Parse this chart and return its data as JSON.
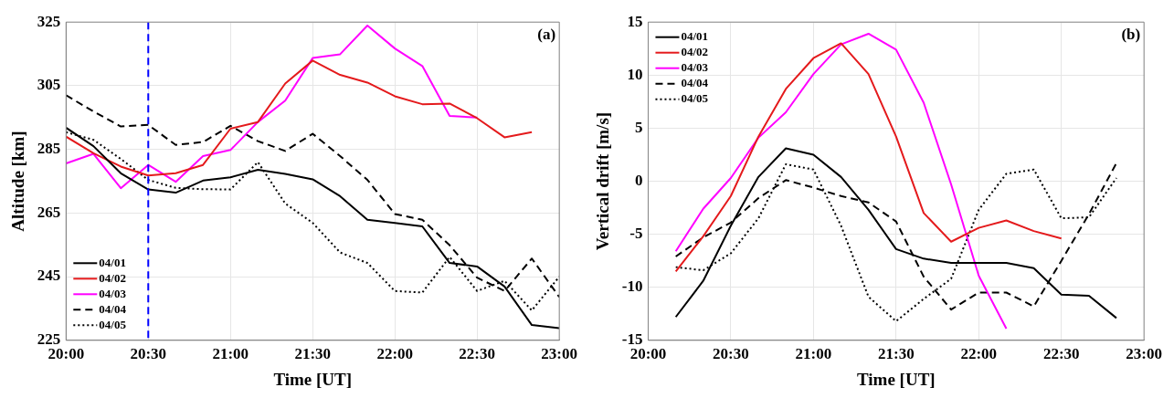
{
  "chart_data": [
    {
      "type": "line",
      "xlabel": "Time [UT]",
      "ylabel": "Altitude [km]",
      "annotations": [
        "(a)"
      ],
      "x": [
        20,
        20.167,
        20.333,
        20.5,
        20.667,
        20.833,
        21,
        21.167,
        21.333,
        21.5,
        21.667,
        21.833,
        22,
        22.167,
        22.333,
        22.5,
        22.667,
        22.833,
        23
      ],
      "series": [
        {
          "name": "04/01",
          "color": "#000000",
          "line_style": "solid",
          "values": [
            291.8,
            286,
            277.5,
            272.4,
            271.4,
            275.2,
            276.2,
            278.6,
            277.3,
            275.6,
            270.3,
            262.9,
            261.9,
            260.8,
            249.3,
            248.2,
            241.9,
            229.8,
            228.8
          ]
        },
        {
          "name": "04/02",
          "color": "#e41a1c",
          "line_style": "solid",
          "values": [
            289,
            283.8,
            279.6,
            276.8,
            277.5,
            280.1,
            291.5,
            293.6,
            305.7,
            312.9,
            308.4,
            306,
            301.7,
            299.2,
            299.4,
            294.8,
            288.8,
            290.4,
            null
          ]
        },
        {
          "name": "04/03",
          "color": "#ff00ff",
          "line_style": "solid",
          "values": [
            280.6,
            283.6,
            272.8,
            280.1,
            274.8,
            282.9,
            284.8,
            293.6,
            300.3,
            313.7,
            314.9,
            323.9,
            316.7,
            311.2,
            295.5,
            295,
            null,
            null,
            null
          ]
        },
        {
          "name": "04/04",
          "color": "#000000",
          "line_style": "dashed",
          "values": [
            302,
            296.9,
            292.2,
            292.7,
            286.4,
            287.3,
            292.4,
            287.6,
            284.5,
            289.9,
            282.9,
            275.4,
            264.7,
            262.9,
            254.9,
            244.7,
            240.5,
            250.7,
            238.6
          ]
        },
        {
          "name": "04/05",
          "color": "#000000",
          "line_style": "dotted",
          "values": [
            290.4,
            288,
            282,
            275.4,
            272.9,
            272.5,
            272.4,
            281,
            268,
            261.9,
            252.6,
            249.3,
            240.5,
            240,
            251.2,
            240.5,
            243.7,
            234.4,
            245
          ]
        }
      ],
      "xlim": [
        20,
        23
      ],
      "xticks": [
        {
          "value": 20,
          "label": "20:00"
        },
        {
          "value": 20.5,
          "label": "20:30"
        },
        {
          "value": 21,
          "label": "21:00"
        },
        {
          "value": 21.5,
          "label": "21:30"
        },
        {
          "value": 22,
          "label": "22:00"
        },
        {
          "value": 22.5,
          "label": "22:30"
        },
        {
          "value": 23,
          "label": "23:00"
        }
      ],
      "ylim": [
        225,
        325
      ],
      "yticks": [
        225,
        245,
        265,
        285,
        305,
        325
      ],
      "ref_lines": [
        {
          "axis": "x",
          "value": 20.5,
          "color": "#0000ff",
          "line_style": "dashed"
        }
      ],
      "grid": true,
      "legend": "bottom left"
    },
    {
      "type": "line",
      "xlabel": "Time [UT]",
      "ylabel": "Vertical drift [m/s]",
      "annotations": [
        "(b)"
      ],
      "x": [
        20.167,
        20.333,
        20.5,
        20.667,
        20.833,
        21,
        21.167,
        21.333,
        21.5,
        21.667,
        21.833,
        22,
        22.167,
        22.333,
        22.5,
        22.667,
        22.833
      ],
      "series": [
        {
          "name": "04/01",
          "color": "#000000",
          "line_style": "solid",
          "values": [
            -12.8,
            -9.4,
            -4.2,
            0.4,
            3.1,
            2.5,
            0.4,
            -2.7,
            -6.4,
            -7.3,
            -7.7,
            -7.7,
            -7.7,
            -8.2,
            -10.7,
            -10.8,
            -12.9
          ]
        },
        {
          "name": "04/02",
          "color": "#e41a1c",
          "line_style": "solid",
          "values": [
            -8.5,
            -5.2,
            -1.4,
            4.2,
            8.7,
            11.6,
            13,
            10.1,
            4.2,
            -3,
            -5.7,
            -4.4,
            -3.7,
            -4.7,
            -5.4,
            null,
            null
          ]
        },
        {
          "name": "04/03",
          "color": "#ff00ff",
          "line_style": "solid",
          "values": [
            -6.6,
            -2.6,
            0.3,
            4.1,
            6.5,
            10.1,
            12.9,
            13.9,
            12.4,
            7.4,
            -0.3,
            -8.9,
            -13.9,
            null,
            null,
            null,
            null
          ]
        },
        {
          "name": "04/04",
          "color": "#000000",
          "line_style": "dashed",
          "values": [
            -7.1,
            -5.3,
            -3.9,
            -1.6,
            0.1,
            -0.6,
            -1.4,
            -2,
            -3.8,
            -9,
            -12.1,
            -10.5,
            -10.5,
            -11.8,
            -7.5,
            -3.1,
            1.7
          ]
        },
        {
          "name": "04/05",
          "color": "#000000",
          "line_style": "dotted",
          "values": [
            -8.1,
            -8.4,
            -6.8,
            -3.5,
            1.6,
            1.1,
            -4.2,
            -10.9,
            -13.2,
            -11.1,
            -9.2,
            -2.7,
            0.7,
            1.1,
            -3.5,
            -3.4,
            0.3
          ]
        }
      ],
      "xlim": [
        20,
        23
      ],
      "xticks": [
        {
          "value": 20,
          "label": "20:00"
        },
        {
          "value": 20.5,
          "label": "20:30"
        },
        {
          "value": 21,
          "label": "21:00"
        },
        {
          "value": 21.5,
          "label": "21:30"
        },
        {
          "value": 22,
          "label": "22:00"
        },
        {
          "value": 22.5,
          "label": "22:30"
        },
        {
          "value": 23,
          "label": "23:00"
        }
      ],
      "ylim": [
        -15,
        15
      ],
      "yticks": [
        -15,
        -10,
        -5,
        0,
        5,
        10,
        15
      ],
      "grid": true,
      "legend": "top left"
    }
  ]
}
